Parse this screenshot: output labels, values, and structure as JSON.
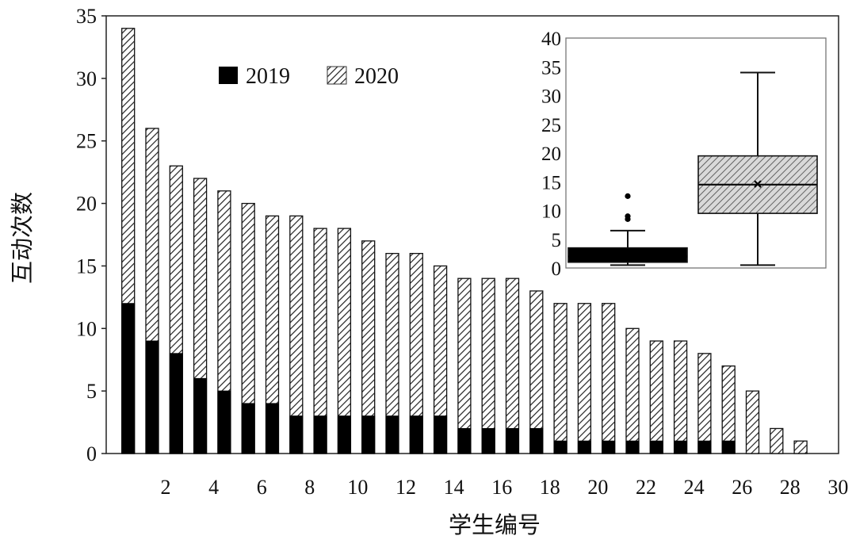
{
  "chart_data": [
    {
      "type": "bar",
      "title": "",
      "xlabel": "学生编号",
      "ylabel": "互动次数",
      "ylim": [
        0,
        35
      ],
      "yticks": [
        0,
        5,
        10,
        15,
        20,
        25,
        30,
        35
      ],
      "xticks": [
        2,
        4,
        6,
        8,
        10,
        12,
        14,
        16,
        18,
        20,
        22,
        24,
        26,
        28,
        30
      ],
      "categories": [
        1,
        2,
        3,
        4,
        5,
        6,
        7,
        8,
        9,
        10,
        11,
        12,
        13,
        14,
        15,
        16,
        17,
        18,
        19,
        20,
        21,
        22,
        23,
        24,
        25,
        26,
        27,
        28,
        29
      ],
      "series": [
        {
          "name": "2019",
          "color": "#000000",
          "values": [
            12,
            9,
            8,
            6,
            5,
            4,
            4,
            3,
            3,
            3,
            3,
            3,
            3,
            3,
            2,
            2,
            2,
            2,
            1,
            1,
            1,
            1,
            1,
            1,
            1,
            1,
            0,
            0,
            0
          ]
        },
        {
          "name": "2020",
          "color": "#ffffff",
          "pattern": "diagonal-hatch",
          "values": [
            34,
            26,
            23,
            22,
            21,
            20,
            19,
            19,
            18,
            18,
            17,
            16,
            16,
            15,
            14,
            14,
            14,
            13,
            12,
            12,
            12,
            10,
            9,
            9,
            8,
            7,
            5,
            2,
            1
          ]
        }
      ],
      "legend": "top-left",
      "grid": false
    },
    {
      "type": "box",
      "title": "",
      "ylim": [
        0,
        40
      ],
      "yticks": [
        0,
        5,
        10,
        15,
        20,
        25,
        30,
        35,
        40
      ],
      "series": [
        {
          "name": "2019",
          "color": "#000000",
          "min": 0.5,
          "q1": 1,
          "median": 2,
          "mean": 2.5,
          "q3": 3.5,
          "max": 6.5,
          "outliers": [
            8.5,
            9,
            12.5
          ]
        },
        {
          "name": "2020",
          "color": "#cccccc",
          "pattern": "diagonal-hatch",
          "min": 0.5,
          "q1": 9.5,
          "median": 14.5,
          "mean": 14.6,
          "q3": 19.5,
          "max": 34
        }
      ]
    }
  ]
}
